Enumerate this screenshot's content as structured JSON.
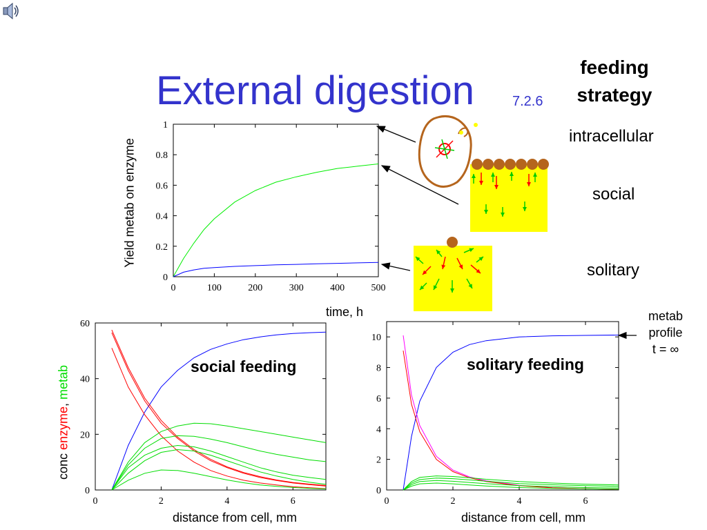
{
  "slide": {
    "title": "External digestion",
    "section_number": "7.2.6",
    "icons": {
      "speaker": "speaker-icon"
    },
    "feeding_strategy": {
      "heading": "feeding strategy",
      "items": [
        "intracellular",
        "social",
        "solitary"
      ]
    },
    "metab_profile_note": [
      "metab",
      "profile",
      "t = ∞"
    ],
    "colors": {
      "title": "#3333cc",
      "enzyme": "#ff0000",
      "metab": "#00dd00",
      "yield_social": "#00ee00",
      "yield_solitary": "#0000ff",
      "conc_metab_profile": "#0000ff",
      "cell": "#b5651d",
      "medium": "#ffff00"
    }
  },
  "chart_data": [
    {
      "type": "line",
      "xlabel": "time, h",
      "ylabel": "Yield metab on enzyme",
      "xlim": [
        0,
        500
      ],
      "ylim": [
        0,
        1
      ],
      "xticks": [
        0,
        100,
        200,
        300,
        400,
        500
      ],
      "yticks": [
        0,
        0.2,
        0.4,
        0.6,
        0.8,
        1
      ],
      "x": [
        0,
        25,
        50,
        75,
        100,
        150,
        200,
        250,
        300,
        350,
        400,
        450,
        500
      ],
      "series": [
        {
          "color": "#00ee00",
          "values": [
            0,
            0.12,
            0.22,
            0.31,
            0.38,
            0.49,
            0.565,
            0.62,
            0.655,
            0.685,
            0.71,
            0.725,
            0.74
          ]
        },
        {
          "color": "#0000ff",
          "values": [
            0,
            0.03,
            0.045,
            0.055,
            0.06,
            0.068,
            0.073,
            0.078,
            0.081,
            0.085,
            0.088,
            0.091,
            0.094
          ]
        }
      ]
    },
    {
      "type": "line",
      "title": "social feeding",
      "xlabel": "distance from cell, mm",
      "ylabel_parts": [
        "conc ",
        "enzyme",
        ", ",
        "metab"
      ],
      "xlim": [
        0,
        7
      ],
      "ylim": [
        0,
        60
      ],
      "xticks": [
        0,
        2,
        4,
        6
      ],
      "yticks": [
        0,
        20,
        40,
        60
      ],
      "x": [
        0.5,
        1,
        1.5,
        2,
        2.5,
        3,
        3.5,
        4,
        4.5,
        5,
        5.5,
        6,
        6.5,
        7
      ],
      "series": [
        {
          "color": "#0000ff",
          "values": [
            0,
            16,
            28,
            37,
            43,
            47.5,
            50.5,
            52.5,
            54,
            55,
            55.7,
            56.2,
            56.5,
            56.7
          ]
        },
        {
          "color": "#ff0000",
          "values": [
            57.5,
            44,
            33,
            25,
            19,
            14.5,
            11,
            8.3,
            6.3,
            4.8,
            3.6,
            2.7,
            2.1,
            1.6
          ]
        },
        {
          "color": "#ff0000",
          "values": [
            56.5,
            43,
            32,
            24,
            18.5,
            14,
            10.5,
            8,
            6,
            4.5,
            3.4,
            2.5,
            1.9,
            1.4
          ]
        },
        {
          "color": "#ff0000",
          "values": [
            51,
            37,
            27,
            19.5,
            14,
            10,
            7,
            5,
            3.5,
            2.5,
            1.8,
            1.2,
            0.8,
            0.5
          ]
        },
        {
          "color": "#00dd00",
          "values": [
            0,
            10,
            17,
            21,
            23,
            24,
            23.8,
            23,
            22,
            21,
            20,
            19,
            18,
            17
          ]
        },
        {
          "color": "#00dd00",
          "values": [
            0,
            9,
            15,
            18.5,
            19.5,
            19.3,
            18.3,
            17,
            15.5,
            14,
            12.8,
            11.8,
            10.8,
            10.2
          ]
        },
        {
          "color": "#00dd00",
          "values": [
            0,
            8,
            12.5,
            15,
            16,
            15.5,
            14,
            12,
            10,
            8,
            6.5,
            5.3,
            4.5,
            3.8
          ]
        },
        {
          "color": "#00dd00",
          "values": [
            0,
            6,
            10.5,
            13.5,
            14.5,
            14,
            12.5,
            10.5,
            8.5,
            6.5,
            5,
            3.8,
            2.8,
            2
          ]
        },
        {
          "color": "#00dd00",
          "values": [
            0,
            3.5,
            6,
            7.2,
            7,
            6,
            4.8,
            3.6,
            2.6,
            1.8,
            1.3,
            0.9,
            0.6,
            0.4
          ]
        }
      ]
    },
    {
      "type": "line",
      "title": "solitary feeding",
      "xlabel": "distance from cell, mm",
      "xlim": [
        0,
        7
      ],
      "ylim": [
        0,
        11
      ],
      "xticks": [
        0,
        2,
        4,
        6
      ],
      "yticks": [
        0,
        2,
        4,
        6,
        8,
        10
      ],
      "x": [
        0.5,
        0.75,
        1,
        1.5,
        2,
        2.5,
        3,
        4,
        5,
        6,
        7
      ],
      "series": [
        {
          "color": "#0000ff",
          "values": [
            0,
            3.5,
            5.8,
            8,
            9,
            9.5,
            9.75,
            10,
            10.07,
            10.1,
            10.12
          ]
        },
        {
          "color": "#ff00ff",
          "values": [
            10.1,
            6.2,
            4.2,
            2.2,
            1.3,
            0.85,
            0.6,
            0.3,
            0.15,
            0.08,
            0.05
          ]
        },
        {
          "color": "#ff0000",
          "values": [
            9.1,
            5.6,
            3.8,
            2,
            1.2,
            0.8,
            0.55,
            0.28,
            0.14,
            0.08,
            0.05
          ]
        },
        {
          "color": "#00dd00",
          "values": [
            0,
            0.55,
            0.82,
            0.92,
            0.88,
            0.8,
            0.7,
            0.55,
            0.45,
            0.38,
            0.33
          ]
        },
        {
          "color": "#00dd00",
          "values": [
            0,
            0.45,
            0.68,
            0.78,
            0.74,
            0.66,
            0.57,
            0.42,
            0.34,
            0.28,
            0.24
          ]
        },
        {
          "color": "#00dd00",
          "values": [
            0,
            0.35,
            0.55,
            0.62,
            0.57,
            0.49,
            0.41,
            0.29,
            0.21,
            0.16,
            0.13
          ]
        },
        {
          "color": "#00dd00",
          "values": [
            0,
            0.25,
            0.4,
            0.45,
            0.4,
            0.33,
            0.26,
            0.16,
            0.1,
            0.07,
            0.05
          ]
        }
      ]
    }
  ]
}
